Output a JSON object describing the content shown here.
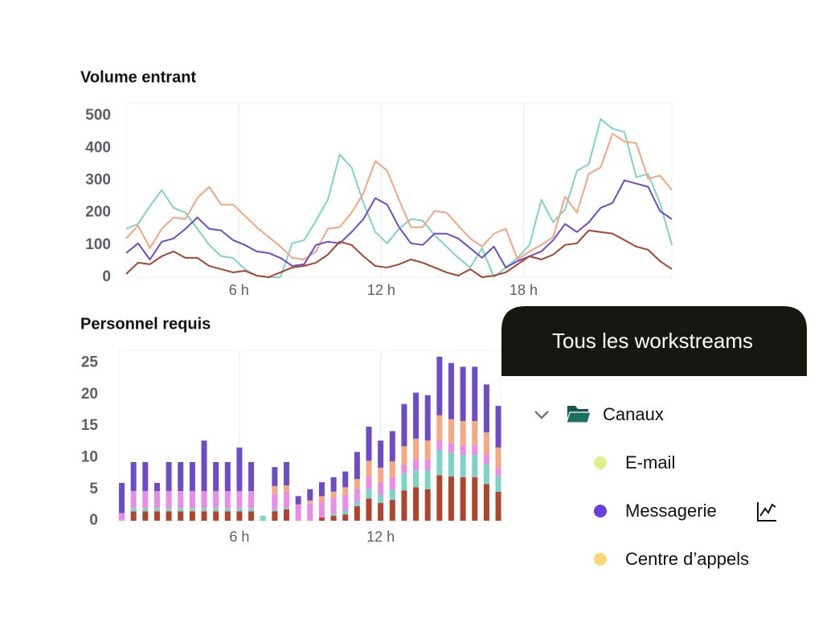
{
  "chart_data": [
    {
      "type": "line",
      "title": "Volume entrant",
      "x": [
        1.25,
        1.75,
        2.25,
        2.75,
        3.25,
        3.75,
        4.25,
        4.75,
        5.25,
        5.75,
        6.25,
        6.75,
        7.25,
        7.75,
        8.25,
        8.75,
        9.25,
        9.75,
        10.25,
        10.75,
        11.25,
        11.75,
        12.25,
        12.75,
        13.25,
        13.75,
        14.25,
        14.75,
        15.25,
        15.75,
        16.25,
        16.75,
        17.25,
        17.75,
        18.25,
        18.75,
        19.25,
        19.75,
        20.25,
        20.75,
        21.25,
        21.75,
        22.25,
        22.75,
        23.25,
        23.75,
        24.25
      ],
      "series": [
        {
          "color": "#7dd3c4",
          "values": [
            150,
            165,
            220,
            270,
            215,
            200,
            150,
            100,
            65,
            60,
            25,
            5,
            0,
            0,
            105,
            115,
            175,
            240,
            380,
            340,
            230,
            140,
            105,
            150,
            180,
            175,
            130,
            95,
            60,
            30,
            90,
            0,
            30,
            60,
            100,
            240,
            170,
            210,
            330,
            350,
            490,
            460,
            450,
            310,
            320,
            230,
            100
          ]
        },
        {
          "color": "#f5a47f",
          "values": [
            120,
            160,
            90,
            150,
            185,
            180,
            245,
            280,
            225,
            225,
            190,
            155,
            125,
            95,
            60,
            55,
            80,
            150,
            155,
            200,
            260,
            360,
            330,
            240,
            155,
            155,
            205,
            200,
            160,
            120,
            95,
            135,
            150,
            55,
            80,
            100,
            125,
            250,
            200,
            320,
            340,
            445,
            420,
            415,
            305,
            315,
            270
          ]
        },
        {
          "color": "#6a4cc9",
          "values": [
            75,
            105,
            55,
            110,
            120,
            150,
            185,
            150,
            145,
            115,
            100,
            80,
            75,
            60,
            35,
            40,
            100,
            110,
            105,
            140,
            180,
            245,
            225,
            155,
            105,
            100,
            135,
            135,
            120,
            90,
            60,
            95,
            30,
            50,
            65,
            80,
            115,
            165,
            140,
            170,
            215,
            230,
            300,
            290,
            280,
            205,
            180
          ]
        },
        {
          "color": "#a8432f",
          "values": [
            10,
            45,
            40,
            65,
            80,
            60,
            60,
            35,
            25,
            15,
            20,
            5,
            0,
            15,
            30,
            35,
            45,
            70,
            110,
            100,
            65,
            35,
            30,
            40,
            55,
            45,
            30,
            15,
            5,
            25,
            0,
            5,
            15,
            40,
            65,
            55,
            70,
            100,
            105,
            145,
            140,
            135,
            115,
            95,
            85,
            50,
            25
          ]
        }
      ],
      "xlim": [
        1.25,
        24.25
      ],
      "xticks": [
        {
          "value": 6,
          "label": "6 h"
        },
        {
          "value": 12,
          "label": "12 h"
        },
        {
          "value": 18,
          "label": "18 h"
        }
      ],
      "ylim": [
        0,
        540
      ],
      "yticks": [
        0,
        100,
        200,
        300,
        400,
        500
      ],
      "grid": true
    },
    {
      "type": "stacked_bar",
      "title": "Personnel requis",
      "x": [
        1,
        1.5,
        2,
        2.5,
        3,
        3.5,
        4,
        4.5,
        5,
        5.5,
        6,
        6.5,
        7,
        7.5,
        8,
        8.5,
        9,
        9.5,
        10,
        10.5,
        11,
        11.5,
        12,
        12.5,
        13,
        13.5,
        14,
        14.5,
        15,
        15.5,
        16,
        16.5,
        17
      ],
      "series": [
        {
          "color": "#b0452f",
          "values": [
            0,
            1.5,
            1.5,
            1.5,
            1.5,
            1.5,
            1.5,
            1.5,
            1.5,
            1.5,
            1.5,
            1.5,
            0,
            1.5,
            1.8,
            0,
            0,
            0.5,
            0.8,
            1,
            2.3,
            3.5,
            2.8,
            3.3,
            4.8,
            5.3,
            5,
            7.2,
            7,
            6.9,
            6.9,
            5.8,
            4.6
          ]
        },
        {
          "color": "#7dd3c4",
          "values": [
            0,
            0.5,
            0.5,
            0.5,
            0.5,
            0.5,
            0.5,
            0.5,
            0.5,
            0.5,
            0.5,
            0.5,
            0.8,
            0.3,
            0.3,
            0,
            0,
            0,
            0.3,
            0.6,
            0.7,
            1.5,
            1.3,
            1.6,
            2.7,
            2.7,
            3,
            4,
            3.8,
            3.5,
            3.5,
            3.2,
            2.5
          ]
        },
        {
          "color": "#e98ce8",
          "values": [
            1.2,
            2.7,
            2.7,
            2.7,
            2.7,
            2.7,
            2.7,
            2.7,
            2.7,
            2.7,
            2.7,
            2.7,
            0,
            2.5,
            2.5,
            2.6,
            2.7,
            2.5,
            2.5,
            2.5,
            2,
            2,
            2,
            2,
            1.3,
            1.7,
            1.7,
            1.5,
            1.5,
            1.6,
            1.6,
            1.5,
            1.2
          ]
        },
        {
          "color": "#f7a882",
          "values": [
            0,
            0,
            0,
            0,
            0,
            0,
            0,
            0,
            0,
            0,
            0,
            0,
            0,
            1.2,
            1,
            0,
            0.5,
            0.9,
            1,
            1.2,
            1.6,
            2.5,
            2.3,
            2.5,
            3,
            3.3,
            3,
            4,
            3.8,
            3.8,
            3.8,
            3.5,
            3.3
          ]
        },
        {
          "color": "#6d4cc7",
          "values": [
            4.8,
            4.6,
            4.6,
            1.3,
            4.6,
            4.6,
            4.6,
            8,
            4.6,
            4.6,
            6.9,
            4.6,
            0,
            3,
            3.7,
            1.3,
            1.8,
            2.2,
            2.3,
            2.5,
            4.3,
            5.4,
            4.3,
            4.8,
            6.7,
            7.3,
            7.2,
            9.3,
            8.9,
            8.6,
            8.6,
            7.6,
            6.6
          ]
        }
      ],
      "xlim": [
        0.88,
        17.1
      ],
      "xticks": [
        {
          "value": 6,
          "label": "6 h"
        },
        {
          "value": 12,
          "label": "12 h"
        }
      ],
      "ylim": [
        0,
        27
      ],
      "yticks": [
        0,
        5,
        10,
        15,
        20,
        25
      ],
      "grid": true
    }
  ],
  "panel": {
    "title": "Tous les workstreams",
    "group": "Canaux",
    "items": [
      {
        "label": "E-mail",
        "color": "#dcf28e"
      },
      {
        "label": "Messagerie",
        "color": "#6a3fe0"
      },
      {
        "label": "Centre d’appels",
        "color": "#fbd676"
      }
    ]
  }
}
